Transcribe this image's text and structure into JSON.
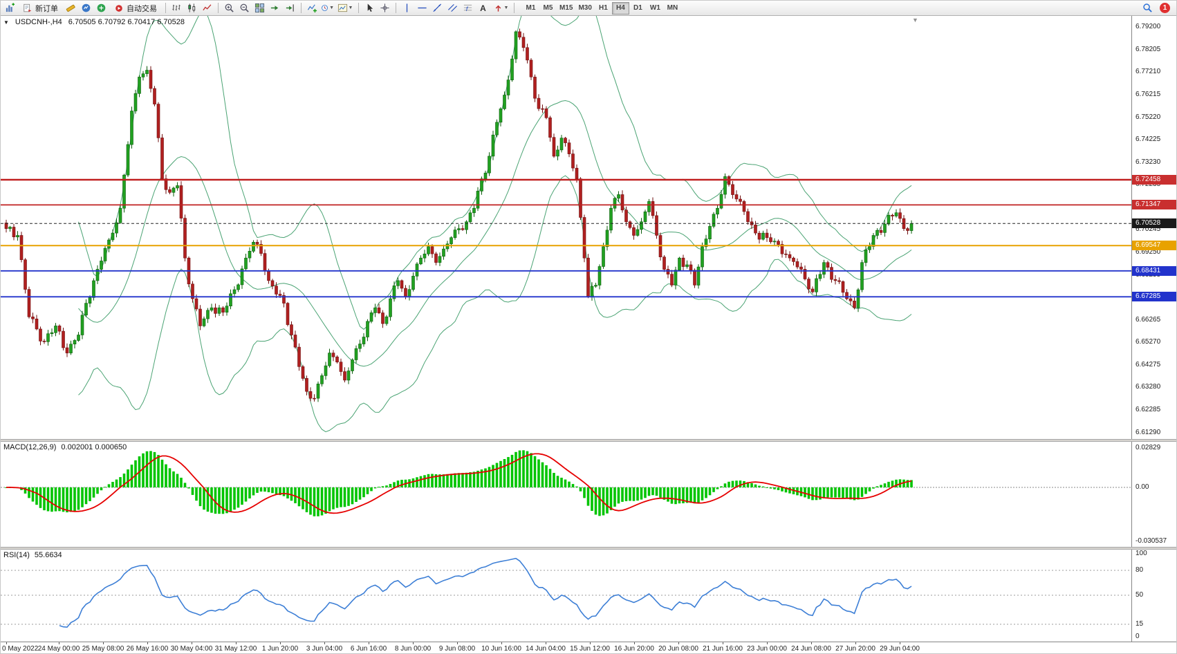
{
  "toolbar": {
    "new_order": "新订单",
    "auto_trading": "自动交易",
    "text_tool": "A",
    "timeframes": [
      "M1",
      "M5",
      "M15",
      "M30",
      "H1",
      "H4",
      "D1",
      "W1",
      "MN"
    ],
    "active_timeframe": "H4",
    "notification_count": "1"
  },
  "main_chart": {
    "title": "USDCNH-,H4",
    "ohlc": "6.70505 6.70792 6.70417 6.70528",
    "axis_labels": [
      "6.79200",
      "6.78205",
      "6.77210",
      "6.76215",
      "6.75220",
      "6.74225",
      "6.73230",
      "6.72235",
      "6.70245",
      "6.69250",
      "6.68255",
      "6.66265",
      "6.65270",
      "6.64275",
      "6.63280",
      "6.62285",
      "6.61290"
    ],
    "price_tags": [
      {
        "text": "6.72458",
        "color": "#c92f2f"
      },
      {
        "text": "6.71347",
        "color": "#c92f2f"
      },
      {
        "text": "6.70528",
        "color": "#1a1a1a"
      },
      {
        "text": "6.69547",
        "color": "#e8a200"
      },
      {
        "text": "6.68431",
        "color": "#2233cc"
      },
      {
        "text": "6.67285",
        "color": "#2233cc"
      }
    ],
    "levels": [
      {
        "price": 6.72458,
        "color": "#c02020",
        "width": 2.4,
        "dash": ""
      },
      {
        "price": 6.71347,
        "color": "#c02020",
        "width": 1.8,
        "dash": ""
      },
      {
        "price": 6.70528,
        "color": "#222222",
        "width": 1,
        "dash": "4 3"
      },
      {
        "price": 6.69547,
        "color": "#e8a200",
        "width": 2,
        "dash": ""
      },
      {
        "price": 6.68431,
        "color": "#2233cc",
        "width": 1.8,
        "dash": ""
      },
      {
        "price": 6.67285,
        "color": "#2233cc",
        "width": 1.8,
        "dash": ""
      }
    ]
  },
  "chart_data": {
    "type": "candlestick",
    "symbol": "USDCNH",
    "timeframe": "H4",
    "num_candles": 239,
    "price_range_top": 6.797,
    "price_range_bottom": 6.61,
    "up_color": "#21a121",
    "down_color": "#b02020",
    "band_color": "#4aa373",
    "bollinger": {
      "period": 20,
      "deviation": 2
    },
    "price_anchors": [
      [
        0,
        6.703
      ],
      [
        3,
        6.7
      ],
      [
        6,
        6.664
      ],
      [
        10,
        6.653
      ],
      [
        13,
        6.66
      ],
      [
        16,
        6.648
      ],
      [
        19,
        6.656
      ],
      [
        21,
        6.67
      ],
      [
        24,
        6.685
      ],
      [
        27,
        6.698
      ],
      [
        30,
        6.712
      ],
      [
        33,
        6.755
      ],
      [
        35,
        6.77
      ],
      [
        37,
        6.773
      ],
      [
        39,
        6.758
      ],
      [
        41,
        6.725
      ],
      [
        43,
        6.719
      ],
      [
        45,
        6.722
      ],
      [
        47,
        6.69
      ],
      [
        49,
        6.672
      ],
      [
        51,
        6.66
      ],
      [
        54,
        6.668
      ],
      [
        57,
        6.666
      ],
      [
        60,
        6.676
      ],
      [
        63,
        6.69
      ],
      [
        65,
        6.697
      ],
      [
        67,
        6.692
      ],
      [
        69,
        6.68
      ],
      [
        71,
        6.674
      ],
      [
        73,
        6.67
      ],
      [
        75,
        6.656
      ],
      [
        77,
        6.642
      ],
      [
        79,
        6.631
      ],
      [
        81,
        6.628
      ],
      [
        83,
        6.638
      ],
      [
        85,
        6.648
      ],
      [
        87,
        6.644
      ],
      [
        89,
        6.636
      ],
      [
        91,
        6.645
      ],
      [
        93,
        6.652
      ],
      [
        95,
        6.662
      ],
      [
        97,
        6.668
      ],
      [
        99,
        6.661
      ],
      [
        101,
        6.672
      ],
      [
        103,
        6.68
      ],
      [
        105,
        6.673
      ],
      [
        107,
        6.682
      ],
      [
        109,
        6.69
      ],
      [
        111,
        6.695
      ],
      [
        113,
        6.688
      ],
      [
        115,
        6.694
      ],
      [
        117,
        6.699
      ],
      [
        119,
        6.703
      ],
      [
        121,
        6.706
      ],
      [
        123,
        6.712
      ],
      [
        125,
        6.725
      ],
      [
        127,
        6.735
      ],
      [
        129,
        6.75
      ],
      [
        131,
        6.762
      ],
      [
        133,
        6.778
      ],
      [
        134,
        6.79
      ],
      [
        136,
        6.783
      ],
      [
        138,
        6.77
      ],
      [
        140,
        6.756
      ],
      [
        142,
        6.752
      ],
      [
        144,
        6.735
      ],
      [
        146,
        6.743
      ],
      [
        148,
        6.736
      ],
      [
        150,
        6.725
      ],
      [
        152,
        6.69
      ],
      [
        153,
        6.673
      ],
      [
        155,
        6.678
      ],
      [
        157,
        6.695
      ],
      [
        159,
        6.712
      ],
      [
        161,
        6.718
      ],
      [
        163,
        6.706
      ],
      [
        165,
        6.7
      ],
      [
        167,
        6.706
      ],
      [
        169,
        6.715
      ],
      [
        171,
        6.7
      ],
      [
        173,
        6.685
      ],
      [
        175,
        6.678
      ],
      [
        177,
        6.69
      ],
      [
        179,
        6.687
      ],
      [
        181,
        6.678
      ],
      [
        183,
        6.695
      ],
      [
        185,
        6.704
      ],
      [
        187,
        6.712
      ],
      [
        189,
        6.726
      ],
      [
        191,
        6.718
      ],
      [
        193,
        6.715
      ],
      [
        195,
        6.706
      ],
      [
        197,
        6.701
      ],
      [
        200,
        6.699
      ],
      [
        203,
        6.696
      ],
      [
        206,
        6.69
      ],
      [
        209,
        6.685
      ],
      [
        212,
        6.675
      ],
      [
        215,
        6.688
      ],
      [
        218,
        6.68
      ],
      [
        221,
        6.672
      ],
      [
        223,
        6.668
      ],
      [
        225,
        6.688
      ],
      [
        228,
        6.7
      ],
      [
        231,
        6.705
      ],
      [
        234,
        6.71
      ],
      [
        236,
        6.703
      ],
      [
        238,
        6.70528
      ]
    ]
  },
  "macd_panel": {
    "label": "MACD(12,26,9)",
    "values": "0.002001 0.000650",
    "axis_labels": [
      "0.02829",
      "0.00",
      "-0.030537"
    ],
    "histogram_color": "#00c400",
    "signal_color": "#e60000"
  },
  "rsi_panel": {
    "label": "RSI(14)",
    "value": "55.6634",
    "axis_labels": [
      "100",
      "80",
      "50",
      "15",
      "0"
    ],
    "levels": [
      80,
      50,
      15
    ],
    "line_color": "#3d7fd6"
  },
  "time_axis": {
    "labels": [
      "0 May 2022",
      "24 May 00:00",
      "25 May 08:00",
      "26 May 16:00",
      "30 May 04:00",
      "31 May 12:00",
      "1 Jun 20:00",
      "3 Jun 04:00",
      "6 Jun 16:00",
      "8 Jun 00:00",
      "9 Jun 08:00",
      "10 Jun 16:00",
      "14 Jun 04:00",
      "15 Jun 12:00",
      "16 Jun 20:00",
      "20 Jun 08:00",
      "21 Jun 16:00",
      "23 Jun 00:00",
      "24 Jun 08:00",
      "27 Jun 20:00",
      "29 Jun 04:00"
    ]
  }
}
